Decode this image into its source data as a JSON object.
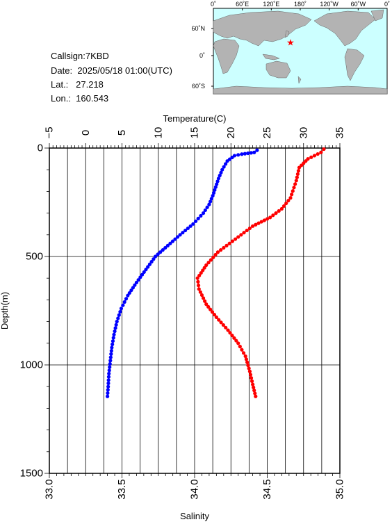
{
  "info": {
    "callsign": "Callsign:7KBD",
    "date_label": "Date:",
    "date": "2025/05/18 01:00(UTC)",
    "lat_label": "Lat.:",
    "lat": "27.218",
    "lon_label": "Lon.:",
    "lon": "160.543"
  },
  "map": {
    "lon_labels": [
      "0˚",
      "60˚E",
      "120˚E",
      "180˚",
      "120˚W",
      "60˚W",
      "0˚"
    ],
    "lat_labels": [
      "60˚N",
      "0˚",
      "60˚S"
    ],
    "ocean_color": "#ccffff",
    "land_color": "#b3b3b3",
    "marker": "star-icon",
    "marker_color": "#ff0000"
  },
  "chart_data": {
    "type": "line",
    "y": {
      "label": "Depth(m)",
      "range": [
        0,
        1500
      ],
      "ticks": [
        "0",
        "500",
        "1000",
        "1500"
      ],
      "inverted": true
    },
    "x_top": {
      "label": "Temperature(C)",
      "range": [
        -5,
        35
      ],
      "ticks": [
        "−5",
        "0",
        "5",
        "10",
        "15",
        "20",
        "25",
        "30",
        "35"
      ]
    },
    "x_bottom": {
      "label": "Salinity",
      "range": [
        33.0,
        35.0
      ],
      "ticks": [
        "33.0",
        "33.5",
        "34.0",
        "34.5",
        "35.0"
      ]
    },
    "grid": true,
    "series": [
      {
        "axis": "temperature",
        "color": "#0000ff",
        "points": [
          [
            23.6,
            10
          ],
          [
            23.2,
            20
          ],
          [
            21.5,
            28
          ],
          [
            20.5,
            35
          ],
          [
            19.5,
            60
          ],
          [
            18.8,
            100
          ],
          [
            18.3,
            140
          ],
          [
            17.9,
            180
          ],
          [
            17.5,
            220
          ],
          [
            17.0,
            260
          ],
          [
            16.2,
            300
          ],
          [
            14.8,
            350
          ],
          [
            13.0,
            400
          ],
          [
            11.3,
            450
          ],
          [
            9.6,
            500
          ],
          [
            8.3,
            560
          ],
          [
            7.0,
            620
          ],
          [
            5.8,
            680
          ],
          [
            4.9,
            740
          ],
          [
            4.3,
            800
          ],
          [
            3.9,
            860
          ],
          [
            3.6,
            920
          ],
          [
            3.4,
            980
          ],
          [
            3.2,
            1040
          ],
          [
            3.1,
            1100
          ],
          [
            3.0,
            1145
          ]
        ]
      },
      {
        "axis": "salinity",
        "color": "#ff0000",
        "points": [
          [
            34.89,
            5
          ],
          [
            34.87,
            20
          ],
          [
            34.78,
            50
          ],
          [
            34.72,
            90
          ],
          [
            34.7,
            150
          ],
          [
            34.66,
            230
          ],
          [
            34.6,
            280
          ],
          [
            34.52,
            320
          ],
          [
            34.4,
            360
          ],
          [
            34.28,
            420
          ],
          [
            34.16,
            480
          ],
          [
            34.08,
            540
          ],
          [
            34.02,
            600
          ],
          [
            34.03,
            650
          ],
          [
            34.08,
            720
          ],
          [
            34.15,
            780
          ],
          [
            34.23,
            840
          ],
          [
            34.3,
            900
          ],
          [
            34.35,
            960
          ],
          [
            34.38,
            1030
          ],
          [
            34.4,
            1090
          ],
          [
            34.42,
            1145
          ]
        ]
      }
    ]
  }
}
